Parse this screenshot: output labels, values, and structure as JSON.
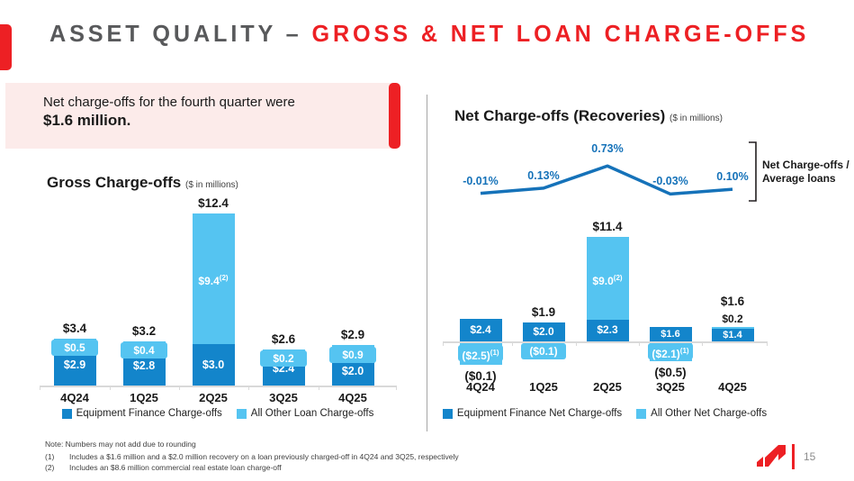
{
  "title": {
    "gray": "ASSET QUALITY –",
    "red": "GROSS & NET LOAN CHARGE-OFFS"
  },
  "callout": {
    "line1": "Net charge-offs for the fourth quarter were",
    "line2": "$1.6 million."
  },
  "colors": {
    "dark_blue": "#1385cb",
    "light_blue": "#55c4f1",
    "line_blue": "#1572b9",
    "red": "#ed2024",
    "pink": "#fcebea",
    "title_gray": "#58595b",
    "axis_gray": "#d9d9d9",
    "text_dark": "#1a1a1a"
  },
  "chart_data": [
    {
      "id": "gross",
      "type": "bar",
      "stacked": true,
      "title": "Gross Charge-offs",
      "subtitle": "($ in millions)",
      "categories": [
        "4Q24",
        "1Q25",
        "2Q25",
        "3Q25",
        "4Q25"
      ],
      "series": [
        {
          "name": "Equipment Finance Charge-offs",
          "color_key": "dark_blue",
          "values": [
            2.9,
            2.8,
            3.0,
            2.4,
            2.0
          ],
          "labels": [
            "$2.9",
            "$2.8",
            "$3.0",
            "$2.4",
            "$2.0"
          ]
        },
        {
          "name": "All Other Loan Charge-offs",
          "color_key": "light_blue",
          "values": [
            0.5,
            0.4,
            9.4,
            0.2,
            0.9
          ],
          "labels": [
            "$0.5",
            "$0.4",
            "$9.4",
            "$0.2",
            "$0.9"
          ],
          "label_sups": [
            "",
            "",
            "(2)",
            "",
            ""
          ]
        }
      ],
      "totals": [
        3.4,
        3.2,
        12.4,
        2.6,
        2.9
      ],
      "total_labels": [
        "$3.4",
        "$3.2",
        "$12.4",
        "$2.6",
        "$2.9"
      ],
      "ylim": [
        0,
        13
      ],
      "grid": false,
      "legend_position": "bottom"
    },
    {
      "id": "net",
      "type": "bar",
      "stacked": true,
      "overlay_line": true,
      "title": "Net Charge-offs (Recoveries)",
      "subtitle": "($ in millions)",
      "categories": [
        "4Q24",
        "1Q25",
        "2Q25",
        "3Q25",
        "4Q25"
      ],
      "series": [
        {
          "name": "Equipment Finance Net Charge-offs",
          "color_key": "dark_blue",
          "values": [
            2.4,
            2.0,
            2.3,
            1.6,
            1.4
          ],
          "labels": [
            "$2.4",
            "$2.0",
            "$2.3",
            "$1.6",
            "$1.4"
          ]
        },
        {
          "name": "All Other Net Charge-offs",
          "color_key": "light_blue",
          "values": [
            -2.5,
            -0.1,
            9.0,
            -2.1,
            0.2
          ],
          "labels": [
            "($2.5)",
            "($0.1)",
            "$9.0",
            "($2.1)",
            "$0.2"
          ],
          "label_sups": [
            "(1)",
            "",
            "(2)",
            "(1)",
            ""
          ]
        }
      ],
      "totals": [
        -0.1,
        1.9,
        11.4,
        -0.5,
        1.6
      ],
      "total_labels": [
        "($0.1)",
        "$1.9",
        "$11.4",
        "($0.5)",
        "$1.6"
      ],
      "ylim": [
        -3,
        12
      ],
      "grid": false,
      "legend_position": "bottom",
      "line_series": {
        "name": "Net Charge-offs / Average loans",
        "values_pct": [
          -0.01,
          0.13,
          0.73,
          -0.03,
          0.1
        ],
        "labels": [
          "-0.01%",
          "0.13%",
          "0.73%",
          "-0.03%",
          "0.10%"
        ],
        "annotation": "Net Charge-offs /\nAverage loans"
      }
    }
  ],
  "footer": {
    "note": "Note: Numbers may not add due to rounding",
    "footnote1_marker": "(1)",
    "footnote1": "Includes a $1.6 million and a $2.0 million recovery on a loan previously charged-off in 4Q24 and 3Q25, respectively",
    "footnote2_marker": "(2)",
    "footnote2": "Includes an $8.6 million commercial real estate loan charge-off",
    "page_number": "15"
  }
}
